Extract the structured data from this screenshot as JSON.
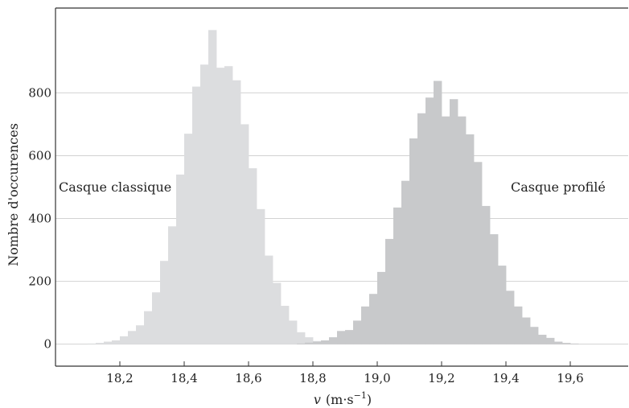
{
  "chart_data": {
    "type": "histogram",
    "xlabel_var": "v",
    "xlabel_unit": "(m·s",
    "xlabel_exp": "−1",
    "xlabel_close": ")",
    "ylabel": "Nombre d'occurences",
    "xlim": [
      18.0,
      19.78
    ],
    "ylim": [
      -70,
      1070
    ],
    "bin_width": 0.025,
    "grid": "horizontal",
    "x_ticks": [
      {
        "value": 18.2,
        "label": "18,2"
      },
      {
        "value": 18.4,
        "label": "18,4"
      },
      {
        "value": 18.6,
        "label": "18,6"
      },
      {
        "value": 18.8,
        "label": "18,8"
      },
      {
        "value": 19.0,
        "label": "19,0"
      },
      {
        "value": 19.2,
        "label": "19,2"
      },
      {
        "value": 19.4,
        "label": "19,4"
      },
      {
        "value": 19.6,
        "label": "19,6"
      }
    ],
    "y_ticks": [
      {
        "value": 0,
        "label": "0"
      },
      {
        "value": 200,
        "label": "200"
      },
      {
        "value": 400,
        "label": "400"
      },
      {
        "value": 600,
        "label": "600"
      },
      {
        "value": 800,
        "label": "800"
      }
    ],
    "series": [
      {
        "name": "Casque classique",
        "color": "#dcdddf",
        "bin_start": 18.1,
        "values": [
          2,
          4,
          8,
          12,
          25,
          42,
          60,
          105,
          165,
          265,
          375,
          540,
          670,
          820,
          890,
          1000,
          880,
          885,
          840,
          700,
          560,
          430,
          282,
          195,
          122,
          75,
          38,
          22,
          10,
          4,
          2
        ]
      },
      {
        "name": "Casque profilé",
        "color": "#c8c9cb",
        "bin_start": 18.75,
        "values": [
          2,
          5,
          8,
          12,
          22,
          42,
          45,
          75,
          120,
          160,
          230,
          335,
          435,
          520,
          655,
          735,
          785,
          838,
          725,
          780,
          725,
          668,
          580,
          440,
          350,
          250,
          170,
          120,
          85,
          55,
          30,
          20,
          8,
          4,
          2
        ]
      }
    ]
  }
}
